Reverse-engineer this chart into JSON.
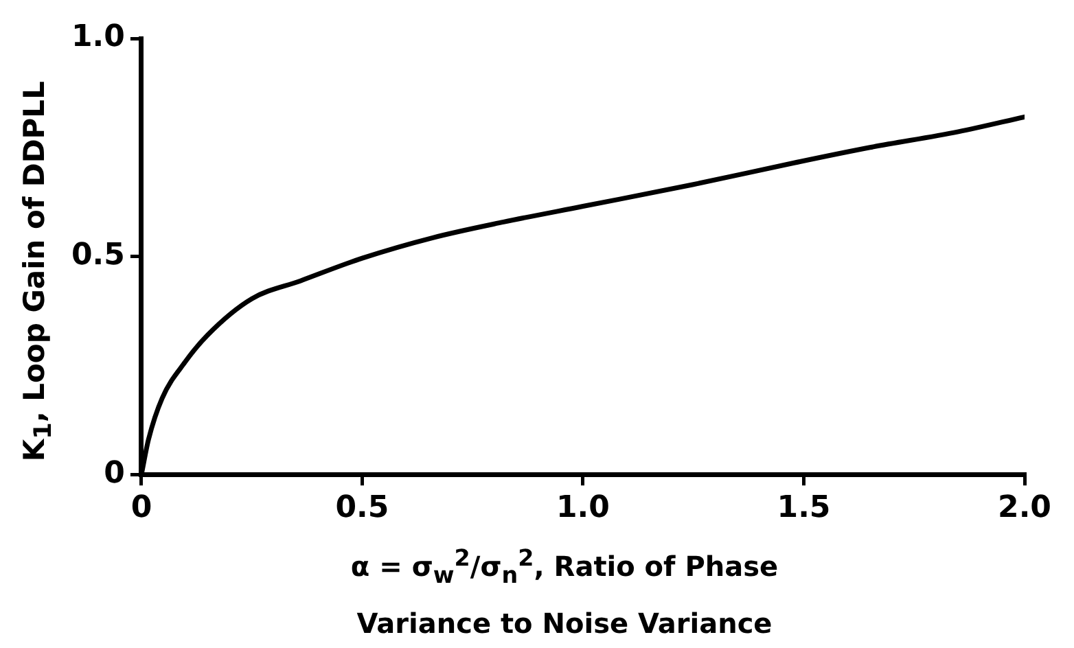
{
  "chart_data": {
    "type": "line",
    "xlabel": "α = σ$_{w}$$^{2}$/σ$_{n}$$^{2}$, Ratio of Phase\nVariance to Noise Variance",
    "ylabel": "K$_{1}$, Loop Gain of DDPLL",
    "x": [
      0,
      0.016,
      0.047,
      0.099,
      0.15,
      0.25,
      0.36,
      0.5,
      0.66,
      0.82,
      1.0,
      1.25,
      1.48,
      1.65,
      1.85,
      2.0
    ],
    "series": [
      {
        "color": "#000000",
        "values": [
          0,
          0.08,
          0.175,
          0.258,
          0.32,
          0.403,
          0.444,
          0.496,
          0.543,
          0.579,
          0.615,
          0.665,
          0.715,
          0.75,
          0.786,
          0.82
        ]
      }
    ],
    "xlim": [
      0,
      2.0
    ],
    "ylim": [
      0,
      1.0
    ],
    "xticks": [
      0,
      {
        "value": 0.5,
        "label": "0.5"
      },
      {
        "value": 1,
        "label": "1.0"
      },
      {
        "value": 1.5,
        "label": "1.5"
      },
      {
        "value": 2,
        "label": "2.0"
      }
    ],
    "yticks": [
      0,
      {
        "value": 0.5,
        "label": "0.5"
      },
      {
        "value": 1,
        "label": "1.0"
      }
    ],
    "grid": false,
    "legend": false,
    "marker": "none",
    "line_style": "solid"
  }
}
